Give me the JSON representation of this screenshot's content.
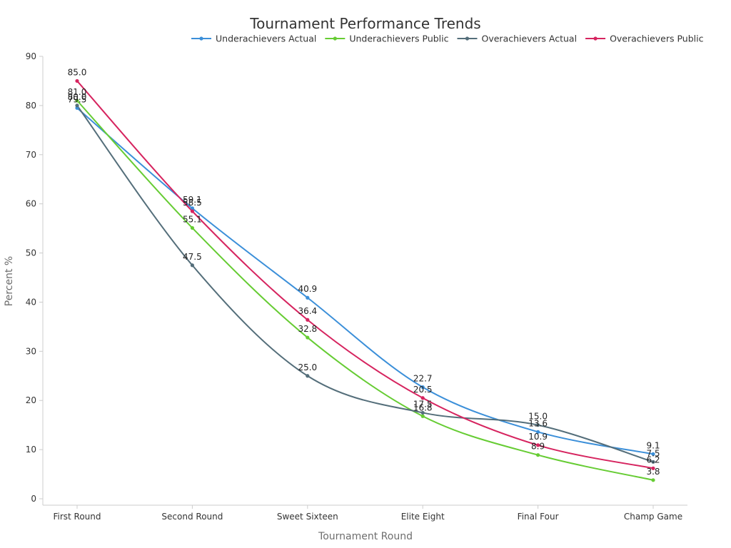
{
  "chart_data": {
    "type": "line",
    "title": "Tournament Performance Trends",
    "xlabel": "Tournament Round",
    "ylabel": "Percent %",
    "ylim": [
      0,
      90
    ],
    "yticks": [
      "0",
      "10",
      "20",
      "30",
      "40",
      "50",
      "60",
      "70",
      "80",
      "90"
    ],
    "grid": false,
    "legend_position": "top-right",
    "categories": [
      "First Round",
      "Second Round",
      "Sweet Sixteen",
      "Elite Eight",
      "Final Four",
      "Champ Game"
    ],
    "series": [
      {
        "name": "Underachievers Actual",
        "color": "#3b8fd9",
        "values": [
          79.5,
          59.1,
          40.9,
          22.7,
          13.6,
          9.1
        ],
        "labels": [
          "79.5",
          "59.1",
          "40.9",
          "22.7",
          "13.6",
          "9.1"
        ]
      },
      {
        "name": "Underachievers Public",
        "color": "#66cc33",
        "values": [
          81.0,
          55.1,
          32.8,
          16.8,
          8.9,
          3.8
        ],
        "labels": [
          "81.0",
          "55.1",
          "32.8",
          "16.8",
          "8.9",
          "3.8"
        ]
      },
      {
        "name": "Overachievers Actual",
        "color": "#546e7a",
        "values": [
          80.0,
          47.5,
          25.0,
          17.5,
          15.0,
          7.5
        ],
        "labels": [
          "80.0",
          "47.5",
          "25.0",
          "17.5",
          "15.0",
          "7.5"
        ]
      },
      {
        "name": "Overachievers Public",
        "color": "#d6245f",
        "values": [
          85.0,
          58.5,
          36.4,
          20.5,
          10.9,
          6.2
        ],
        "labels": [
          "85.0",
          "58.5",
          "36.4",
          "20.5",
          "10.9",
          "6.2"
        ]
      }
    ]
  }
}
